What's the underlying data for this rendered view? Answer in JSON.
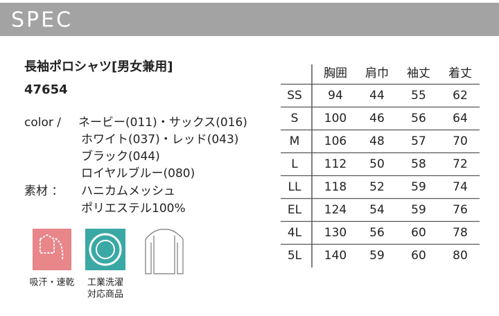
{
  "header": {
    "title": "SPEC"
  },
  "product": {
    "name": "長袖ポロシャツ[男女兼用]",
    "code": "47654",
    "color_label": "color /",
    "colors": [
      "ネービー(011)・サックス(016)",
      "ホワイト(037)・レッド(043)",
      "ブラック(044)",
      "ロイヤルブルー(080)"
    ],
    "material_label": "素材 ：",
    "materials": [
      "ハニカムメッシュ",
      "ポリエステル100%"
    ]
  },
  "icons": [
    {
      "lines": [
        "吸汗・速乾"
      ]
    },
    {
      "lines": [
        "工業洗濯",
        "対応商品"
      ]
    }
  ],
  "table": {
    "columns": [
      "胸囲",
      "肩巾",
      "袖丈",
      "着丈"
    ],
    "rows": [
      {
        "size": "SS",
        "values": [
          94,
          44,
          55,
          62
        ]
      },
      {
        "size": "S",
        "values": [
          100,
          46,
          56,
          64
        ]
      },
      {
        "size": "M",
        "values": [
          106,
          48,
          57,
          70
        ]
      },
      {
        "size": "L",
        "values": [
          112,
          50,
          58,
          72
        ]
      },
      {
        "size": "LL",
        "values": [
          118,
          52,
          59,
          74
        ]
      },
      {
        "size": "EL",
        "values": [
          124,
          54,
          59,
          76
        ]
      },
      {
        "size": "4L",
        "values": [
          130,
          56,
          60,
          78
        ]
      },
      {
        "size": "5L",
        "values": [
          140,
          59,
          60,
          80
        ]
      }
    ]
  }
}
